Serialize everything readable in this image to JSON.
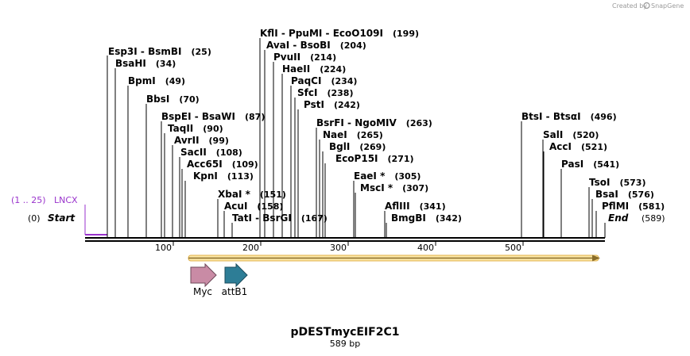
{
  "credit": {
    "prefix": "Created by",
    "brand": "SnapGene"
  },
  "title": "pDESTmycEIF2C1",
  "subtitle": "589 bp",
  "axis": {
    "ticks": [
      "100",
      "200",
      "300",
      "400",
      "500"
    ]
  },
  "start": {
    "pos": "(0)",
    "name": "Start"
  },
  "end": {
    "name": "End",
    "pos": "(589)"
  },
  "primer": {
    "range": "(1 .. 25)",
    "name": "LNCX"
  },
  "features": [
    {
      "name": "Myc"
    },
    {
      "name": "attB1"
    }
  ],
  "colors": {
    "myc": "#c98ba5",
    "attb1": "#2d7d96",
    "orf_line": "#8a6d2a",
    "orf_fill": "#f7c94a",
    "primer": "#9933cc"
  },
  "sites": [
    {
      "name": "Esp3I",
      "name2": "BsmBI",
      "pos": "(25)"
    },
    {
      "name": "BsaHI",
      "pos": "(34)"
    },
    {
      "name": "BpmI",
      "pos": "(49)"
    },
    {
      "name": "BbsI",
      "pos": "(70)"
    },
    {
      "name": "BspEI",
      "name2": "BsaWI",
      "pos": "(87)"
    },
    {
      "name": "TaqII",
      "pos": "(90)"
    },
    {
      "name": "AvrII",
      "pos": "(99)"
    },
    {
      "name": "SacII",
      "pos": "(108)"
    },
    {
      "name": "Acc65I",
      "pos": "(109)"
    },
    {
      "name": "KpnI",
      "pos": "(113)"
    },
    {
      "name": "XbaI *",
      "pos": "(151)"
    },
    {
      "name": "AcuI",
      "pos": "(158)"
    },
    {
      "name": "TatI",
      "name2": "BsrGI",
      "pos": "(167)"
    },
    {
      "name": "KflI",
      "name2": "PpuMI",
      "name3": "EcoO109I",
      "pos": "(199)"
    },
    {
      "name": "AvaI",
      "name2": "BsoBI",
      "pos": "(204)"
    },
    {
      "name": "PvuII",
      "pos": "(214)"
    },
    {
      "name": "HaeII",
      "pos": "(224)"
    },
    {
      "name": "PaqCI",
      "pos": "(234)"
    },
    {
      "name": "SfcI",
      "pos": "(238)"
    },
    {
      "name": "PstI",
      "pos": "(242)"
    },
    {
      "name": "BsrFI",
      "name2": "NgoMIV",
      "pos": "(263)"
    },
    {
      "name": "NaeI",
      "pos": "(265)"
    },
    {
      "name": "BglI",
      "pos": "(269)"
    },
    {
      "name": "EcoP15I",
      "pos": "(271)"
    },
    {
      "name": "EaeI *",
      "pos": "(305)"
    },
    {
      "name": "MscI *",
      "pos": "(307)"
    },
    {
      "name": "AflIII",
      "pos": "(341)"
    },
    {
      "name": "BmgBI",
      "pos": "(342)"
    },
    {
      "name": "BtsI",
      "name2": "BtsαI",
      "pos": "(496)"
    },
    {
      "name": "SalI",
      "pos": "(520)"
    },
    {
      "name": "AccI",
      "pos": "(521)"
    },
    {
      "name": "PasI",
      "pos": "(541)"
    },
    {
      "name": "TsoI",
      "pos": "(573)"
    },
    {
      "name": "BsaI",
      "pos": "(576)"
    },
    {
      "name": "PflMI",
      "pos": "(581)"
    }
  ]
}
